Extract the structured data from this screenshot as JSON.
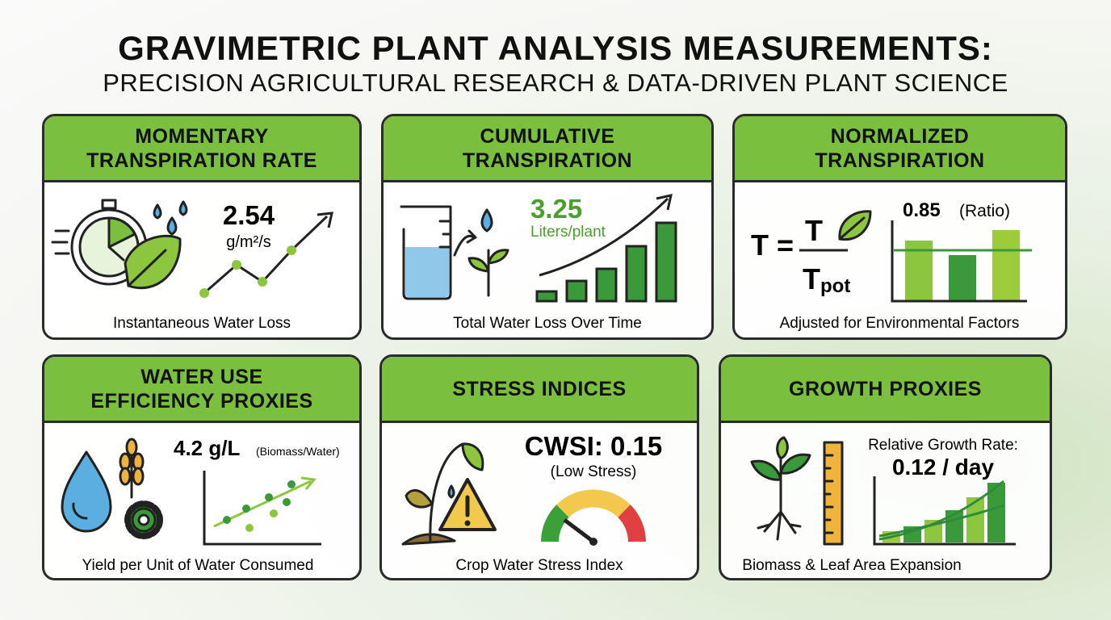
{
  "header": {
    "title": "GRAVIMETRIC PLANT ANALYSIS MEASUREMENTS:",
    "subtitle": "PRECISION AGRICULTURAL RESEARCH & DATA-DRIVEN PLANT SCIENCE"
  },
  "cards": [
    {
      "title": [
        "MOMENTARY",
        "TRANSPIRATION RATE"
      ],
      "value": "2.54",
      "unit": "g/m²/s",
      "caption": "Instantaneous Water Loss"
    },
    {
      "title": [
        "CUMULATIVE",
        "TRANSPIRATION"
      ],
      "value": "3.25",
      "unit": "Liters/plant",
      "caption": "Total Water Loss Over Time"
    },
    {
      "title": [
        "NORMALIZED",
        "TRANSPIRATION"
      ],
      "formula": {
        "lhs": "T =",
        "numerator": "T",
        "denominator": "T",
        "subscript": "pot"
      },
      "value": "0.85",
      "unit": "(Ratio)",
      "caption": "Adjusted for Environmental Factors"
    },
    {
      "title": [
        "WATER USE",
        "EFFICIENCY PROXIES"
      ],
      "value": "4.2 g/L",
      "unit": "(Biomass/Water)",
      "caption": "Yield per Unit of Water Consumed"
    },
    {
      "title": [
        "STRESS INDICES"
      ],
      "value": "CWSI: 0.15",
      "unit": "(Low Stress)",
      "caption": "Crop Water Stress Index"
    },
    {
      "title": [
        "GROWTH PROXIES"
      ],
      "label": "Relative Growth Rate:",
      "value": "0.12 / day",
      "caption": "Biomass & Leaf Area Expansion"
    }
  ]
}
